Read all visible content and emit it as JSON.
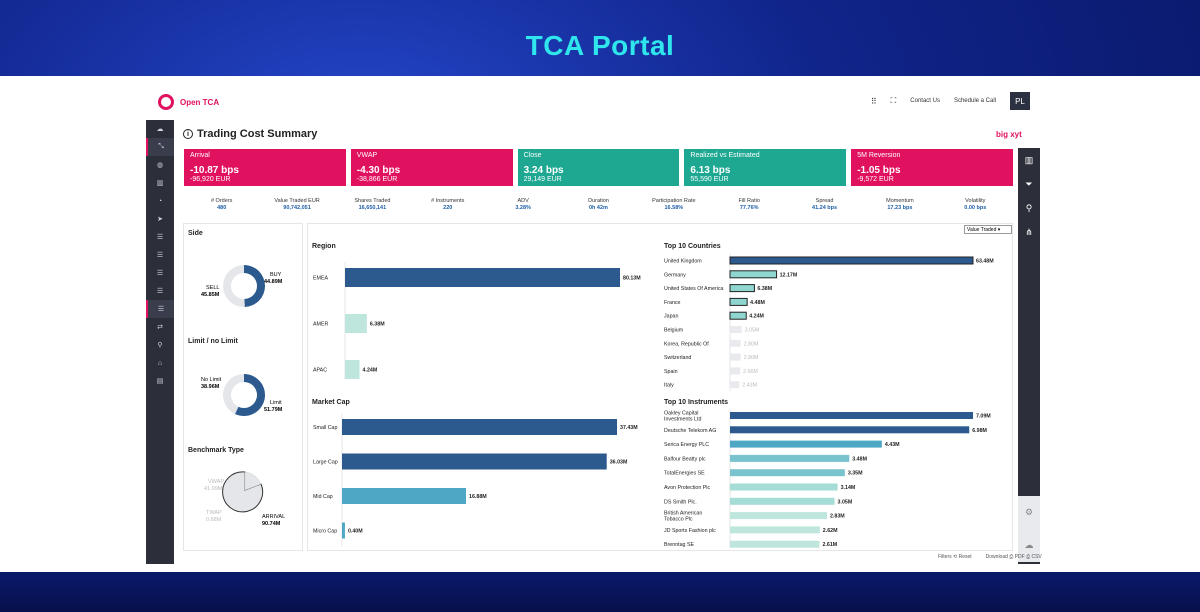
{
  "banner": {
    "title": "TCA Portal"
  },
  "app": {
    "logo_text": "Open TCA",
    "nav": {
      "contact": "Contact Us",
      "schedule": "Schedule a Call",
      "avatar": "PL"
    },
    "page_title": "Trading Cost Summary",
    "brand": "big xyt"
  },
  "kpis": [
    {
      "title": "Arrival",
      "value": "-10.87 bps",
      "sub": "-96,920 EUR",
      "color": "#e0115f"
    },
    {
      "title": "VWAP",
      "value": "-4.30 bps",
      "sub": "-38,866 EUR",
      "color": "#e0115f"
    },
    {
      "title": "Close",
      "value": "3.24 bps",
      "sub": "29,149 EUR",
      "color": "#1ea892"
    },
    {
      "title": "Realized vs Estimated",
      "value": "6.13 bps",
      "sub": "55,590 EUR",
      "color": "#1ea892"
    },
    {
      "title": "5M Reversion",
      "value": "-1.05 bps",
      "sub": "-9,572 EUR",
      "color": "#e0115f"
    }
  ],
  "stats": [
    {
      "label": "# Orders",
      "value": "480"
    },
    {
      "label": "Value Traded EUR",
      "value": "90,742,051"
    },
    {
      "label": "Shares Traded",
      "value": "16,650,141"
    },
    {
      "label": "# Instruments",
      "value": "220"
    },
    {
      "label": "ADV",
      "value": "3.28%"
    },
    {
      "label": "Duration",
      "value": "0h 42m"
    },
    {
      "label": "Participation Rate",
      "value": "16.58%"
    },
    {
      "label": "Fill Ratio",
      "value": "77.76%"
    },
    {
      "label": "Spread",
      "value": "41.24 bps"
    },
    {
      "label": "Momentum",
      "value": "17.23 bps"
    },
    {
      "label": "Volatility",
      "value": "0.00 bps"
    }
  ],
  "dropdown": {
    "selected": "Value Traded"
  },
  "side": {
    "title": "Side",
    "buy_label": "BUY",
    "buy_value": "44.89M",
    "sell_label": "SELL",
    "sell_value": "45.85M",
    "buy": 44.89,
    "sell": 45.85
  },
  "limit": {
    "title": "Limit / no Limit",
    "nolimit_label": "No Limit",
    "nolimit_value": "38.96M",
    "limit_label": "Limit",
    "limit_value": "51.79M",
    "limit": 51.79,
    "nolimit": 38.96
  },
  "benchmark": {
    "title": "Benchmark Type",
    "vwap_label": "VWAP",
    "vwap_value": "41.99M",
    "twap_label": "TWAP",
    "twap_value": "0.68M",
    "arrival_label": "ARRIVAL",
    "arrival_value": "90.74M"
  },
  "chart_data": [
    {
      "type": "bar",
      "title": "Region",
      "categories": [
        "EMEA",
        "AMER",
        "APAC"
      ],
      "values": [
        80.13,
        6.38,
        4.24
      ],
      "labels": [
        "80.13M",
        "6.38M",
        "4.24M"
      ],
      "unit": "M EUR"
    },
    {
      "type": "bar",
      "title": "Market Cap",
      "categories": [
        "Small Cap",
        "Large Cap",
        "Mid Cap",
        "Micro Cap"
      ],
      "values": [
        37.43,
        36.03,
        16.88,
        0.4
      ],
      "labels": [
        "37.43M",
        "36.03M",
        "16.88M",
        "0.40M"
      ],
      "unit": "M EUR"
    },
    {
      "type": "bar",
      "title": "Top 10 Countries",
      "categories": [
        "United Kingdom",
        "Germany",
        "United States Of America",
        "France",
        "Japan",
        "Belgium",
        "Korea, Republic Of",
        "Switzerland",
        "Spain",
        "Italy"
      ],
      "values": [
        63.48,
        12.17,
        6.38,
        4.48,
        4.24,
        3.05,
        2.8,
        2.8,
        2.66,
        2.43
      ],
      "labels": [
        "63.48M",
        "12.17M",
        "6.38M",
        "4.48M",
        "4.24M",
        "3.05M",
        "2.80M",
        "2.80M",
        "2.66M",
        "2.43M"
      ],
      "unit": "M EUR"
    },
    {
      "type": "bar",
      "title": "Top 10 Instruments",
      "categories": [
        "Oakley Capital Investments Ltd",
        "Deutsche Telekom AG",
        "Serica Energy PLC",
        "Balfour Beatty plc",
        "TotalEnergies SE",
        "Avon Protection Plc",
        "DS Smith Plc.",
        "British American Tobacco Plc",
        "JD Sports Fashion plc",
        "Brenntag SE"
      ],
      "values": [
        7.09,
        6.98,
        4.43,
        3.48,
        3.35,
        3.14,
        3.05,
        2.83,
        2.62,
        2.61
      ],
      "labels": [
        "7.09M",
        "6.98M",
        "4.43M",
        "3.48M",
        "3.35M",
        "3.14M",
        "3.05M",
        "2.83M",
        "2.62M",
        "2.61M"
      ],
      "unit": "M EUR"
    }
  ],
  "footer": {
    "filters": "Filters",
    "reset": "Reset",
    "download": "Download",
    "pdf": "PDF",
    "csv": "CSV"
  }
}
